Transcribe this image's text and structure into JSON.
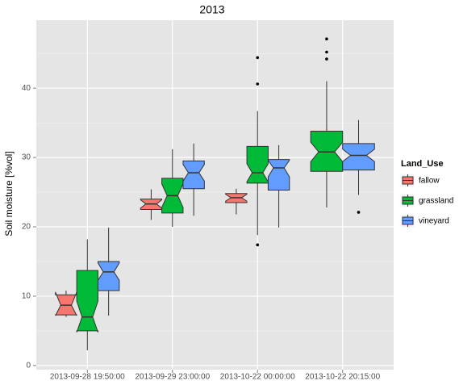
{
  "chart_data": {
    "type": "boxplot",
    "title": "2013",
    "y_label": "Soil moisture [%vol]",
    "categories": [
      "2013-09-28 19:50:00",
      "2013-09-29 23:00:00",
      "2013-10-22 00:00:00",
      "2013-10-22 20:15:00"
    ],
    "ylim": [
      -0.6,
      49.8
    ],
    "yticks": [
      0,
      10,
      20,
      30,
      40
    ],
    "y_minor_ticks": [
      5,
      15,
      25,
      35,
      45
    ],
    "grid": true,
    "notch": true,
    "legend_title": "Land_Use",
    "legend_position": "right",
    "series": [
      {
        "name": "fallow",
        "color": "#F8766D",
        "boxes": [
          {
            "whisker_low": 7.0,
            "q1": 7.3,
            "median": 8.7,
            "q3": 10.2,
            "whisker_high": 10.8,
            "notch_low": 7.2,
            "notch_high": 10.6,
            "outliers": []
          },
          {
            "whisker_low": 21.0,
            "q1": 22.5,
            "median": 23.3,
            "q3": 24.0,
            "whisker_high": 25.4,
            "notch_low": 22.7,
            "notch_high": 23.9,
            "outliers": []
          },
          {
            "whisker_low": 21.8,
            "q1": 23.5,
            "median": 24.2,
            "q3": 24.8,
            "whisker_high": 25.5,
            "notch_low": 23.7,
            "notch_high": 24.7,
            "outliers": []
          },
          null
        ]
      },
      {
        "name": "grassland",
        "color": "#00BA38",
        "boxes": [
          {
            "whisker_low": 2.2,
            "q1": 5.0,
            "median": 7.0,
            "q3": 13.7,
            "whisker_high": 18.2,
            "notch_low": 4.8,
            "notch_high": 9.3,
            "outliers": []
          },
          {
            "whisker_low": 20.0,
            "q1": 22.0,
            "median": 24.5,
            "q3": 27.0,
            "whisker_high": 31.2,
            "notch_low": 22.8,
            "notch_high": 26.2,
            "outliers": []
          },
          {
            "whisker_low": 18.8,
            "q1": 26.3,
            "median": 27.8,
            "q3": 31.6,
            "whisker_high": 36.7,
            "notch_low": 26.5,
            "notch_high": 29.1,
            "outliers": [
              44.4,
              40.6,
              17.4
            ]
          },
          {
            "whisker_low": 22.8,
            "q1": 28.0,
            "median": 30.8,
            "q3": 33.8,
            "whisker_high": 41.0,
            "notch_low": 29.4,
            "notch_high": 32.2,
            "outliers": [
              47.1,
              45.2,
              44.2
            ]
          }
        ]
      },
      {
        "name": "vineyard",
        "color": "#619CFF",
        "boxes": [
          {
            "whisker_low": 7.2,
            "q1": 10.8,
            "median": 13.5,
            "q3": 15.0,
            "whisker_high": 19.9,
            "notch_low": 12.3,
            "notch_high": 14.8,
            "outliers": []
          },
          {
            "whisker_low": 21.6,
            "q1": 25.5,
            "median": 27.8,
            "q3": 29.5,
            "whisker_high": 32.0,
            "notch_low": 26.6,
            "notch_high": 29.0,
            "outliers": []
          },
          {
            "whisker_low": 19.9,
            "q1": 25.3,
            "median": 28.5,
            "q3": 29.7,
            "whisker_high": 31.8,
            "notch_low": 27.2,
            "notch_high": 29.6,
            "outliers": []
          },
          {
            "whisker_low": 24.6,
            "q1": 28.2,
            "median": 30.3,
            "q3": 32.0,
            "whisker_high": 35.4,
            "notch_low": 29.4,
            "notch_high": 31.2,
            "outliers": [
              22.1
            ]
          }
        ]
      }
    ]
  }
}
